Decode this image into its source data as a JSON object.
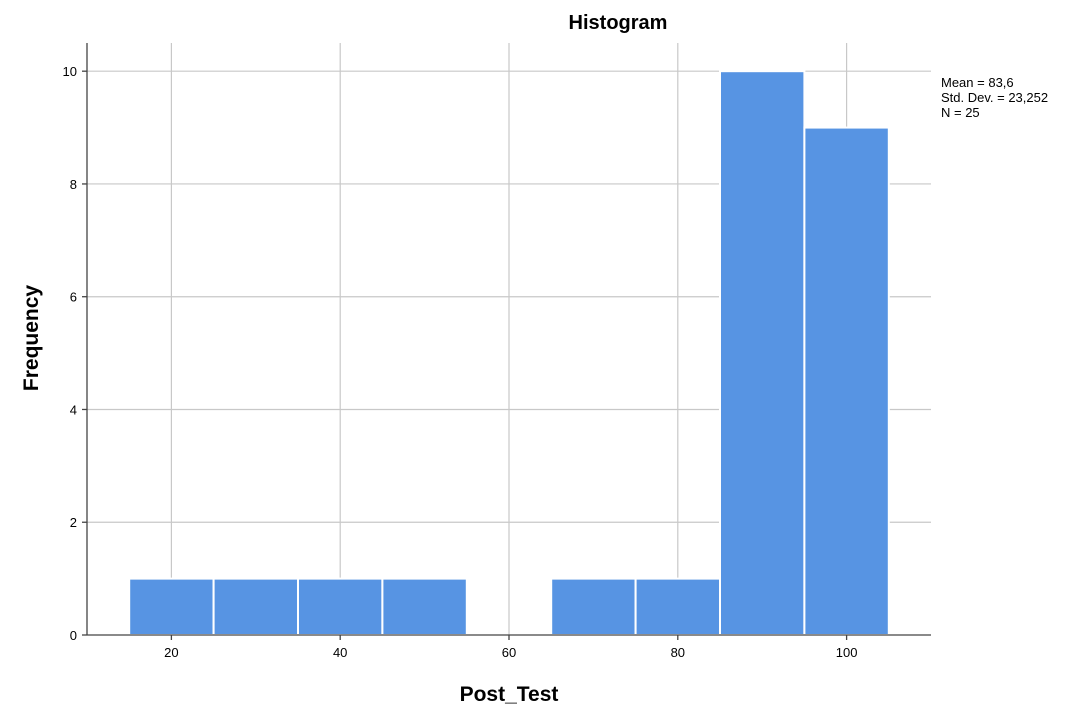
{
  "chart_data": {
    "type": "bar",
    "title": "Histogram",
    "xlabel": "Post_Test",
    "ylabel": "Frequency",
    "xlim": [
      10,
      110
    ],
    "ylim": [
      0,
      10.5
    ],
    "x_ticks": [
      20,
      40,
      60,
      80,
      100
    ],
    "y_ticks": [
      0,
      2,
      4,
      6,
      8,
      10
    ],
    "grid": true,
    "bin_width": 10,
    "bins": [
      {
        "start": 15,
        "end": 25,
        "count": 1
      },
      {
        "start": 25,
        "end": 35,
        "count": 1
      },
      {
        "start": 35,
        "end": 45,
        "count": 1
      },
      {
        "start": 45,
        "end": 55,
        "count": 1
      },
      {
        "start": 55,
        "end": 65,
        "count": 0
      },
      {
        "start": 65,
        "end": 75,
        "count": 1
      },
      {
        "start": 75,
        "end": 85,
        "count": 1
      },
      {
        "start": 85,
        "end": 95,
        "count": 10
      },
      {
        "start": 95,
        "end": 105,
        "count": 9
      }
    ],
    "bar_color": "#5794e3",
    "stats": {
      "mean": "Mean = 83,6",
      "std_dev": "Std. Dev. = 23,252",
      "n": "N = 25"
    }
  }
}
